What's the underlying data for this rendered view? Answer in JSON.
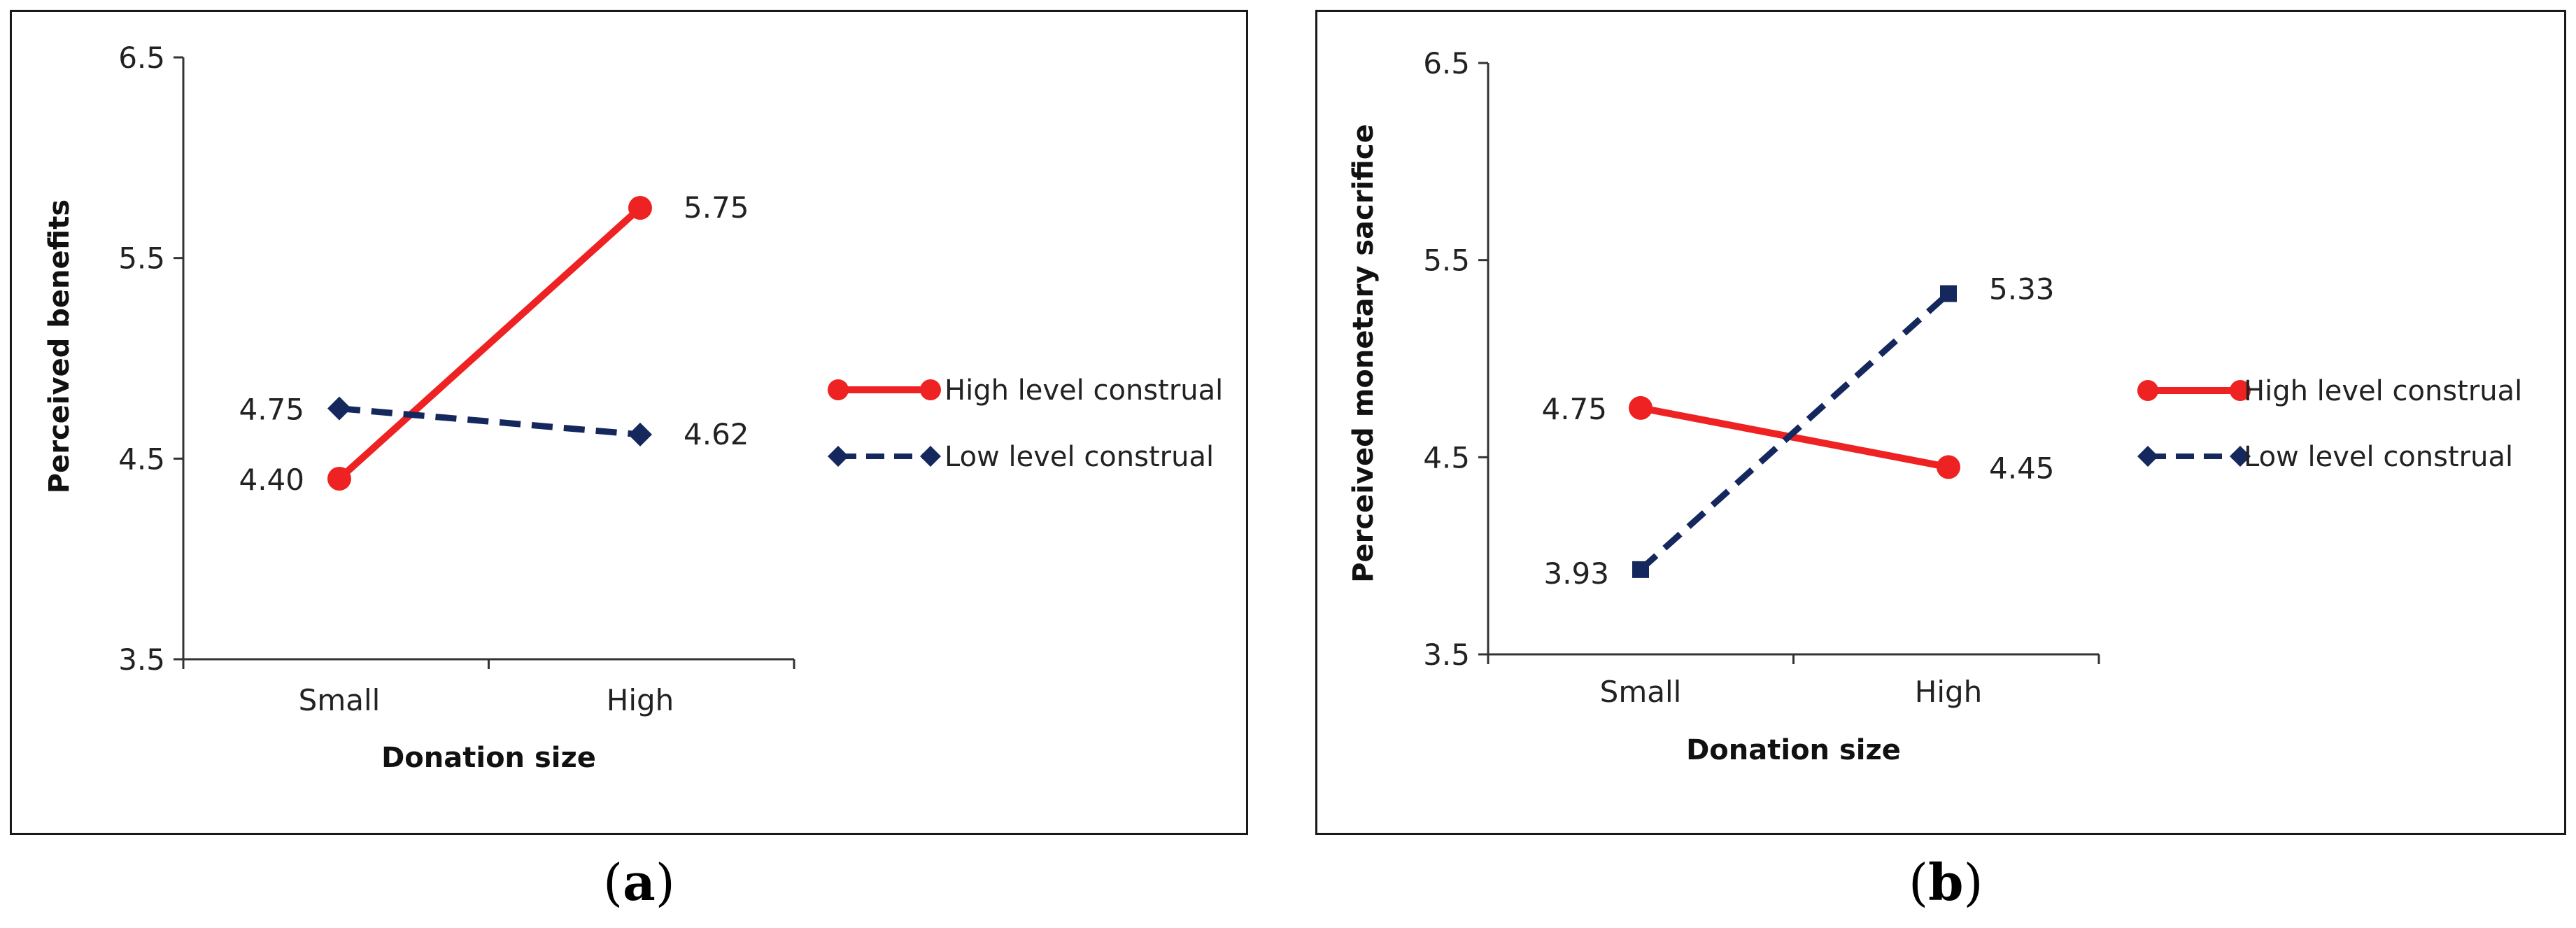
{
  "captions": {
    "a_open": "(",
    "a_letter": "a",
    "a_close": ")",
    "b_open": "(",
    "b_letter": "b",
    "b_close": ")"
  },
  "colors": {
    "high": "#ee2222",
    "low": "#15285e",
    "axis": "#333333"
  },
  "chart_data": [
    {
      "id": "a",
      "type": "line",
      "title": "",
      "xlabel": "Donation size",
      "ylabel": "Perceived benefits",
      "categories": [
        "Small",
        "High"
      ],
      "ylim": [
        3.5,
        6.5
      ],
      "yticks": [
        "3.5",
        "4.5",
        "5.5",
        "6.5"
      ],
      "series": [
        {
          "name": "High level construal",
          "values": [
            4.4,
            5.75
          ],
          "labels": [
            "4.40",
            "5.75"
          ],
          "style": "solid",
          "marker": "circle"
        },
        {
          "name": "Low level construal",
          "values": [
            4.75,
            4.62
          ],
          "labels": [
            "4.75",
            "4.62"
          ],
          "style": "dashed",
          "marker": "diamond"
        }
      ]
    },
    {
      "id": "b",
      "type": "line",
      "title": "",
      "xlabel": "Donation size",
      "ylabel": "Perceived monetary sacrifice",
      "categories": [
        "Small",
        "High"
      ],
      "ylim": [
        3.5,
        6.5
      ],
      "yticks": [
        "3.5",
        "4.5",
        "5.5",
        "6.5"
      ],
      "series": [
        {
          "name": "High level construal",
          "values": [
            4.75,
            4.45
          ],
          "labels": [
            "4.75",
            "4.45"
          ],
          "style": "solid",
          "marker": "circle"
        },
        {
          "name": "Low level construal",
          "values": [
            3.93,
            5.33
          ],
          "labels": [
            "3.93",
            "5.33"
          ],
          "style": "dashed",
          "marker": "square"
        }
      ]
    }
  ]
}
